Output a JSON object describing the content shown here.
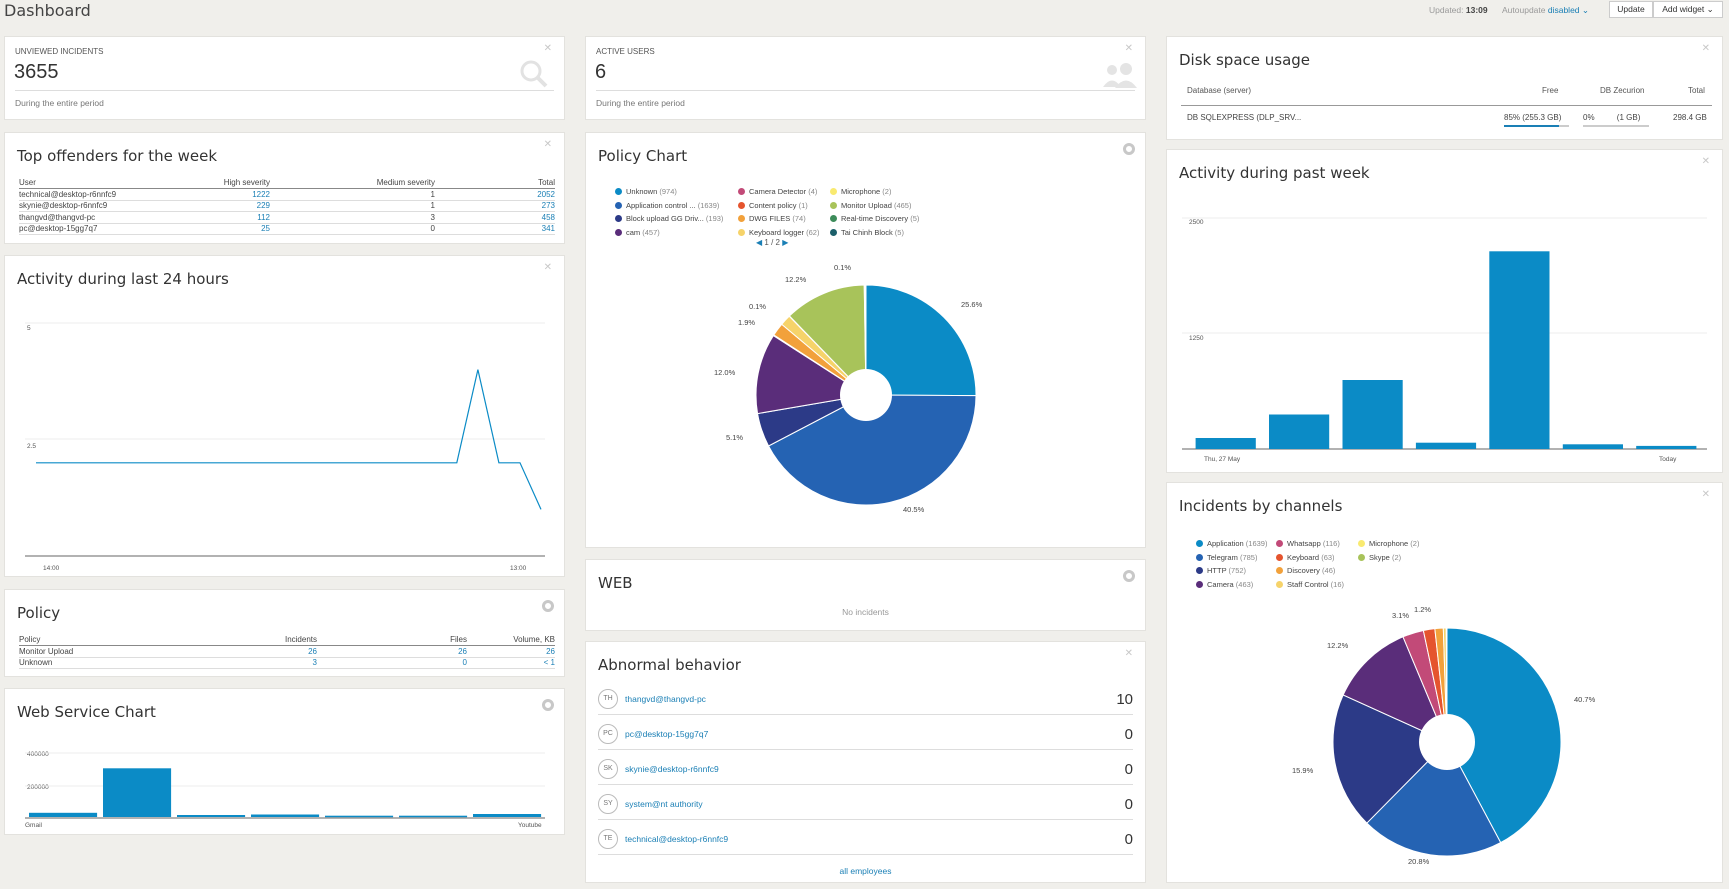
{
  "header": {
    "title": "Dashboard",
    "updated_label": "Updated:",
    "updated_time": "13:09",
    "autoupdate_label": "Autoupdate",
    "autoupdate_value": "disabled",
    "update_button": "Update",
    "add_widget_button": "Add widget"
  },
  "kpi_unviewed": {
    "label": "UNVIEWED INCIDENTS",
    "value": "3655",
    "sub": "During the entire period"
  },
  "kpi_active": {
    "label": "ACTIVE USERS",
    "value": "6",
    "sub": "During the entire period"
  },
  "disk": {
    "title": "Disk space usage",
    "columns": [
      "Database (server)",
      "Free",
      "DB Zecurion",
      "Total"
    ],
    "row": {
      "db": "DB SQLEXPRESS (DLP_SRV...",
      "free_pct": "85%",
      "free_size": "(255.3 GB)",
      "db_pct": "0%",
      "db_size": "(1 GB)",
      "total": "298.4 GB"
    }
  },
  "offenders": {
    "title": "Top offenders for the week",
    "columns": [
      "User",
      "High severity",
      "Medium severity",
      "Total"
    ],
    "rows": [
      {
        "user": "technical@desktop-r6nnfc9",
        "high": "1222",
        "medium": "1",
        "total": "2052"
      },
      {
        "user": "skynie@desktop-r6nnfc9",
        "high": "229",
        "medium": "1",
        "total": "273"
      },
      {
        "user": "thangvd@thangvd-pc",
        "high": "112",
        "medium": "3",
        "total": "458"
      },
      {
        "user": "pc@desktop-15gg7q7",
        "high": "25",
        "medium": "0",
        "total": "341"
      }
    ]
  },
  "activity24": {
    "title": "Activity during last 24 hours",
    "y_ticks": [
      "5",
      "2.5"
    ],
    "x_ticks": [
      "14:00",
      "13:00"
    ]
  },
  "policy_table": {
    "title": "Policy",
    "columns": [
      "Policy",
      "Incidents",
      "Files",
      "Volume, KB"
    ],
    "rows": [
      {
        "policy": "Monitor Upload",
        "incidents": "26",
        "files": "26",
        "volume": "26"
      },
      {
        "policy": "Unknown",
        "incidents": "3",
        "files": "0",
        "volume": "< 1"
      }
    ]
  },
  "web_service": {
    "title": "Web Service Chart",
    "y_ticks": [
      "400000",
      "200000"
    ],
    "x_ticks": [
      "Gmail",
      "Youtube"
    ]
  },
  "policy_chart": {
    "title": "Policy Chart",
    "pager": "1 / 2",
    "legend": [
      {
        "name": "Unknown",
        "count": "(974)",
        "color": "#0b8bc6"
      },
      {
        "name": "Application control ...",
        "count": "(1639)",
        "color": "#2563b3"
      },
      {
        "name": "Block upload GG Driv...",
        "count": "(193)",
        "color": "#2c3a87"
      },
      {
        "name": "cam",
        "count": "(457)",
        "color": "#5a2d7a"
      },
      {
        "name": "Camera Detector",
        "count": "(4)",
        "color": "#c24a78"
      },
      {
        "name": "Content policy",
        "count": "(1)",
        "color": "#e5542e"
      },
      {
        "name": "DWG FILES",
        "count": "(74)",
        "color": "#f2a13b"
      },
      {
        "name": "Keyboard logger",
        "count": "(62)",
        "color": "#f6d36a"
      },
      {
        "name": "Microphone",
        "count": "(2)",
        "color": "#f9ea70"
      },
      {
        "name": "Monitor Upload",
        "count": "(465)",
        "color": "#a8c35a"
      },
      {
        "name": "Real-time Discovery",
        "count": "(5)",
        "color": "#3d8c5a"
      },
      {
        "name": "Tai Chinh Block",
        "count": "(5)",
        "color": "#1b5f6a"
      }
    ],
    "labels": [
      "25.6%",
      "40.5%",
      "5.1%",
      "12.0%",
      "1.9%",
      "0.1%",
      "12.2%",
      "0.1%"
    ]
  },
  "web": {
    "title": "WEB",
    "empty": "No incidents"
  },
  "abnormal": {
    "title": "Abnormal behavior",
    "rows": [
      {
        "initials": "TH",
        "name": "thangvd@thangvd-pc",
        "value": "10"
      },
      {
        "initials": "PC",
        "name": "pc@desktop-15gg7q7",
        "value": "0"
      },
      {
        "initials": "SK",
        "name": "skynie@desktop-r6nnfc9",
        "value": "0"
      },
      {
        "initials": "SY",
        "name": "system@nt authority",
        "value": "0"
      },
      {
        "initials": "TE",
        "name": "technical@desktop-r6nnfc9",
        "value": "0"
      }
    ],
    "footer_link": "all employees"
  },
  "activity_week": {
    "title": "Activity during past week",
    "y_ticks": [
      "2500",
      "1250"
    ],
    "x_ticks": [
      "Thu, 27 May",
      "Today"
    ]
  },
  "channels": {
    "title": "Incidents by channels",
    "legend": [
      {
        "name": "Application",
        "count": "(1639)",
        "color": "#0b8bc6"
      },
      {
        "name": "Telegram",
        "count": "(785)",
        "color": "#2563b3"
      },
      {
        "name": "HTTP",
        "count": "(752)",
        "color": "#2c3a87"
      },
      {
        "name": "Camera",
        "count": "(463)",
        "color": "#5a2d7a"
      },
      {
        "name": "Whatsapp",
        "count": "(116)",
        "color": "#c24a78"
      },
      {
        "name": "Keyboard",
        "count": "(63)",
        "color": "#e5542e"
      },
      {
        "name": "Discovery",
        "count": "(46)",
        "color": "#f2a13b"
      },
      {
        "name": "Staff Control",
        "count": "(16)",
        "color": "#f6d36a"
      },
      {
        "name": "Microphone",
        "count": "(2)",
        "color": "#f9ea70"
      },
      {
        "name": "Skype",
        "count": "(2)",
        "color": "#a8c35a"
      }
    ],
    "labels": [
      "40.7%",
      "20.8%",
      "15.9%",
      "12.2%",
      "3.1%",
      "1.2%"
    ]
  },
  "chart_data": [
    {
      "type": "line",
      "chart": "Activity during last 24 hours",
      "x_labels": [
        "14:00",
        "13:00"
      ],
      "ylim": [
        0,
        5
      ],
      "values": [
        2,
        2,
        2,
        2,
        2,
        2,
        2,
        2,
        2,
        2,
        2,
        2,
        2,
        2,
        2,
        2,
        2,
        2,
        2,
        2,
        2,
        4,
        2,
        2,
        1
      ]
    },
    {
      "type": "bar",
      "chart": "Web Service Chart",
      "x_labels": [
        "Gmail",
        "Youtube"
      ],
      "ylim": [
        0,
        500000
      ],
      "values": [
        25000,
        290000,
        12000,
        15000,
        8000,
        8000,
        18000
      ]
    },
    {
      "type": "pie",
      "chart": "Policy Chart",
      "categories": [
        "Unknown",
        "Application control ...",
        "Block upload GG Driv...",
        "cam",
        "Camera Detector",
        "Content policy",
        "DWG FILES",
        "Keyboard logger",
        "Microphone",
        "Monitor Upload",
        "Real-time Discovery",
        "Tai Chinh Block"
      ],
      "values": [
        974,
        1639,
        193,
        457,
        4,
        1,
        74,
        62,
        2,
        465,
        5,
        5
      ]
    },
    {
      "type": "bar",
      "chart": "Activity during past week",
      "x_labels": [
        "Thu, 27 May",
        "Today"
      ],
      "ylim": [
        0,
        3200
      ],
      "values": [
        140,
        440,
        880,
        80,
        2520,
        60,
        40
      ]
    },
    {
      "type": "pie",
      "chart": "Incidents by channels",
      "categories": [
        "Application",
        "Telegram",
        "HTTP",
        "Camera",
        "Whatsapp",
        "Keyboard",
        "Discovery",
        "Staff Control",
        "Microphone",
        "Skype"
      ],
      "values": [
        1639,
        785,
        752,
        463,
        116,
        63,
        46,
        16,
        2,
        2
      ]
    }
  ]
}
